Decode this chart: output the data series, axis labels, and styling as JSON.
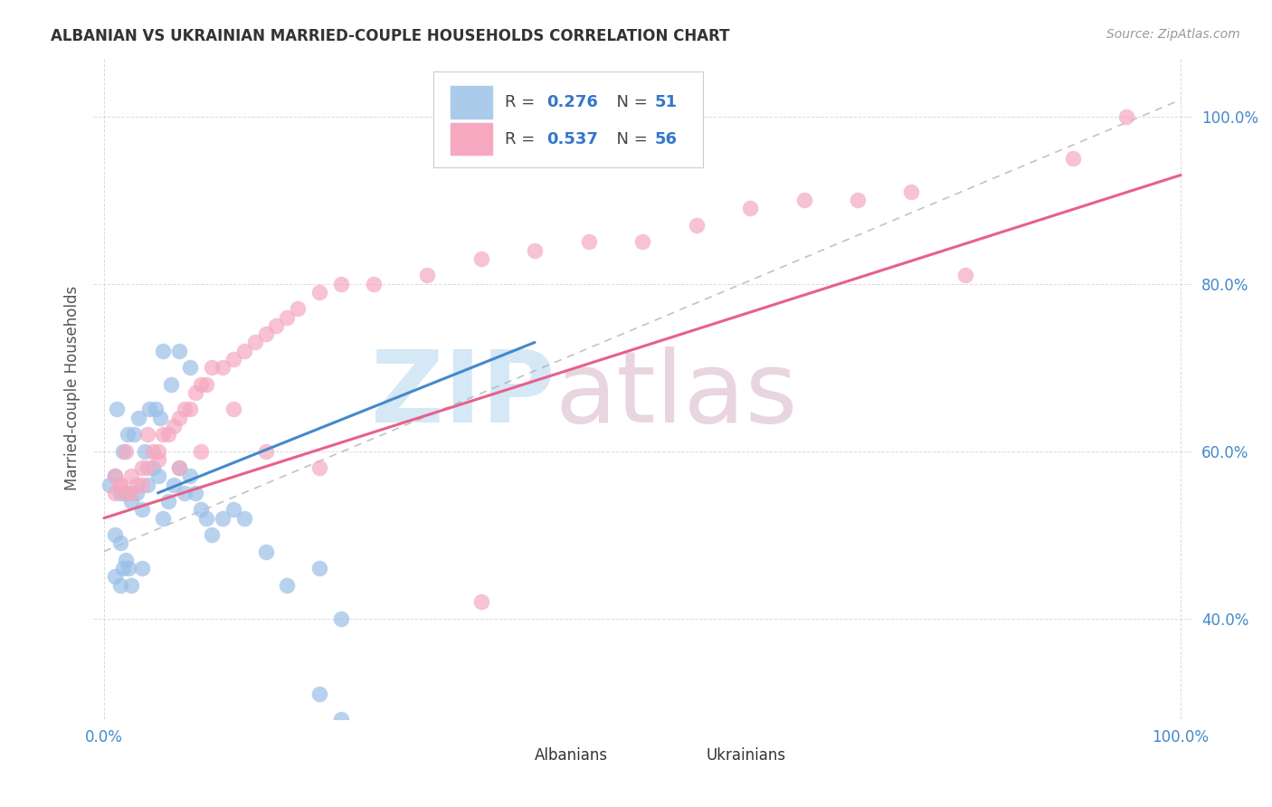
{
  "title": "ALBANIAN VS UKRAINIAN MARRIED-COUPLE HOUSEHOLDS CORRELATION CHART",
  "source": "Source: ZipAtlas.com",
  "ylabel": "Married-couple Households",
  "albanian_color": "#9bbfe8",
  "ukrainian_color": "#f5a8c0",
  "albanian_trend_color": "#4488cc",
  "ukrainian_trend_color": "#e8608a",
  "background_color": "#ffffff",
  "grid_color": "#cccccc",
  "tick_color": "#4488cc",
  "title_color": "#333333",
  "source_color": "#999999",
  "watermark_zip_color": "#d5e8f5",
  "watermark_atlas_color": "#e8d5e0",
  "alb_x": [
    1.5,
    2.0,
    2.5,
    3.0,
    3.5,
    4.0,
    4.5,
    5.0,
    5.5,
    6.0,
    6.5,
    7.0,
    7.5,
    8.0,
    8.5,
    9.0,
    9.5,
    10.0,
    11.0,
    12.0,
    13.0,
    15.0,
    17.0,
    20.0,
    22.0,
    0.5,
    1.0,
    1.2,
    1.8,
    2.2,
    2.8,
    3.2,
    3.8,
    4.2,
    4.8,
    5.2,
    5.5,
    6.2,
    1.0,
    1.5,
    2.0,
    1.0,
    2.5,
    3.5,
    1.5,
    1.8,
    2.3,
    7.0,
    8.0,
    20.0,
    22.0
  ],
  "alb_y": [
    55,
    55,
    54,
    55,
    53,
    56,
    58,
    57,
    52,
    54,
    56,
    58,
    55,
    57,
    55,
    53,
    52,
    50,
    52,
    53,
    52,
    48,
    44,
    46,
    40,
    56,
    57,
    65,
    60,
    62,
    62,
    64,
    60,
    65,
    65,
    64,
    72,
    68,
    50,
    49,
    47,
    45,
    44,
    46,
    44,
    46,
    46,
    72,
    70,
    31,
    28
  ],
  "ukr_x": [
    1.0,
    1.5,
    2.0,
    2.5,
    3.0,
    3.5,
    4.0,
    4.5,
    5.0,
    5.5,
    6.0,
    6.5,
    7.0,
    7.5,
    8.0,
    8.5,
    9.0,
    9.5,
    10.0,
    11.0,
    12.0,
    13.0,
    14.0,
    15.0,
    16.0,
    17.0,
    18.0,
    20.0,
    22.0,
    25.0,
    30.0,
    35.0,
    40.0,
    45.0,
    50.0,
    55.0,
    60.0,
    65.0,
    70.0,
    75.0,
    80.0,
    90.0,
    95.0,
    1.5,
    2.5,
    3.5,
    5.0,
    7.0,
    9.0,
    12.0,
    15.0,
    20.0,
    1.0,
    2.0,
    4.0,
    35.0
  ],
  "ukr_y": [
    55,
    56,
    55,
    57,
    56,
    58,
    58,
    60,
    60,
    62,
    62,
    63,
    64,
    65,
    65,
    67,
    68,
    68,
    70,
    70,
    71,
    72,
    73,
    74,
    75,
    76,
    77,
    79,
    80,
    80,
    81,
    83,
    84,
    85,
    85,
    87,
    89,
    90,
    90,
    91,
    81,
    95,
    100,
    56,
    55,
    56,
    59,
    58,
    60,
    65,
    60,
    58,
    57,
    60,
    62,
    42
  ],
  "alb_trend_x_start": 5.0,
  "alb_trend_x_end": 40.0,
  "alb_trend_y_start": 55.0,
  "alb_trend_y_end": 73.0,
  "alb_dash_x_start": 0.0,
  "alb_dash_x_end": 100.0,
  "alb_dash_y_start": 48.0,
  "alb_dash_y_end": 102.0,
  "ukr_trend_x_start": 0.0,
  "ukr_trend_x_end": 100.0,
  "ukr_trend_y_start": 52.0,
  "ukr_trend_y_end": 93.0,
  "xlim_min": -1,
  "xlim_max": 101,
  "ylim_min": 28,
  "ylim_max": 107,
  "yticks": [
    40,
    60,
    80,
    100
  ],
  "ytick_labels": [
    "40.0%",
    "60.0%",
    "80.0%",
    "100.0%"
  ],
  "xtick_left_label": "0.0%",
  "xtick_right_label": "100.0%"
}
